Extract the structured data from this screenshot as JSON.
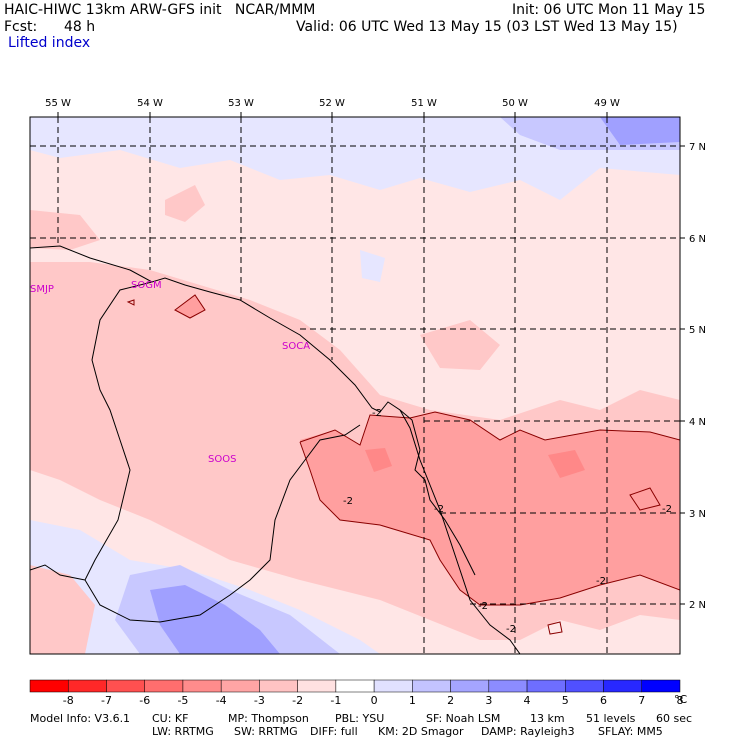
{
  "header": {
    "model_line": "HAIC-HIWC 13km ARW-GFS init   NCAR/MMM",
    "init_line": "Init: 06 UTC Mon 11 May 15",
    "fcst_label": "Fcst:",
    "fcst_value": "48 h",
    "valid_line": "Valid: 06 UTC Wed 13 May 15 (03 LST Wed 13 May 15)",
    "field_name": "Lifted index"
  },
  "map": {
    "lon_labels": [
      "55 W",
      "54 W",
      "53 W",
      "52 W",
      "51 W",
      "50 W",
      "49 W"
    ],
    "lat_labels": [
      "7 N",
      "6 N",
      "5 N",
      "4 N",
      "3 N",
      "2 N"
    ],
    "stations": [
      "SMJP",
      "SOGM",
      "SOCA",
      "SOOS"
    ],
    "contour_labels": [
      "-2",
      "-2",
      "-2",
      "-2",
      "-2",
      "-2",
      "-2"
    ],
    "colors": {
      "very_light_pink": "#ffe6e6",
      "light_pink": "#ffc8c8",
      "medium_pink": "#ff9f9f",
      "light_blue": "#e6e6ff",
      "medium_blue": "#c8c8ff",
      "deeper_blue": "#a0a0ff",
      "coastline": "#000000",
      "contour": "#8a0000",
      "station_label": "#cc00cc"
    }
  },
  "colorbar": {
    "labels": [
      "-8",
      "-7",
      "-6",
      "-5",
      "-4",
      "-3",
      "-2",
      "-1",
      "0",
      "1",
      "2",
      "3",
      "4",
      "5",
      "6",
      "7",
      "8"
    ],
    "unit": "°C",
    "colors": [
      "#ff0000",
      "#ff2828",
      "#ff5050",
      "#ff6e6e",
      "#ff8c8c",
      "#ffa5a5",
      "#ffc3c3",
      "#ffe1e1",
      "#ffffff",
      "#e1e1ff",
      "#c3c3ff",
      "#a5a5ff",
      "#8c8cff",
      "#6e6eff",
      "#5050ff",
      "#2828ff",
      "#0000ff"
    ]
  },
  "footer": {
    "line1": [
      "Model Info: V3.6.1",
      "CU: KF",
      "MP: Thompson",
      "PBL: YSU",
      "SF: Noah LSM",
      "13 km",
      "51 levels",
      "60 sec"
    ],
    "line2": [
      "LW: RRTMG",
      "SW: RRTMG",
      "DIFF: full",
      "KM: 2D Smagor",
      "DAMP: Rayleigh3",
      "SFLAY: MM5"
    ]
  }
}
